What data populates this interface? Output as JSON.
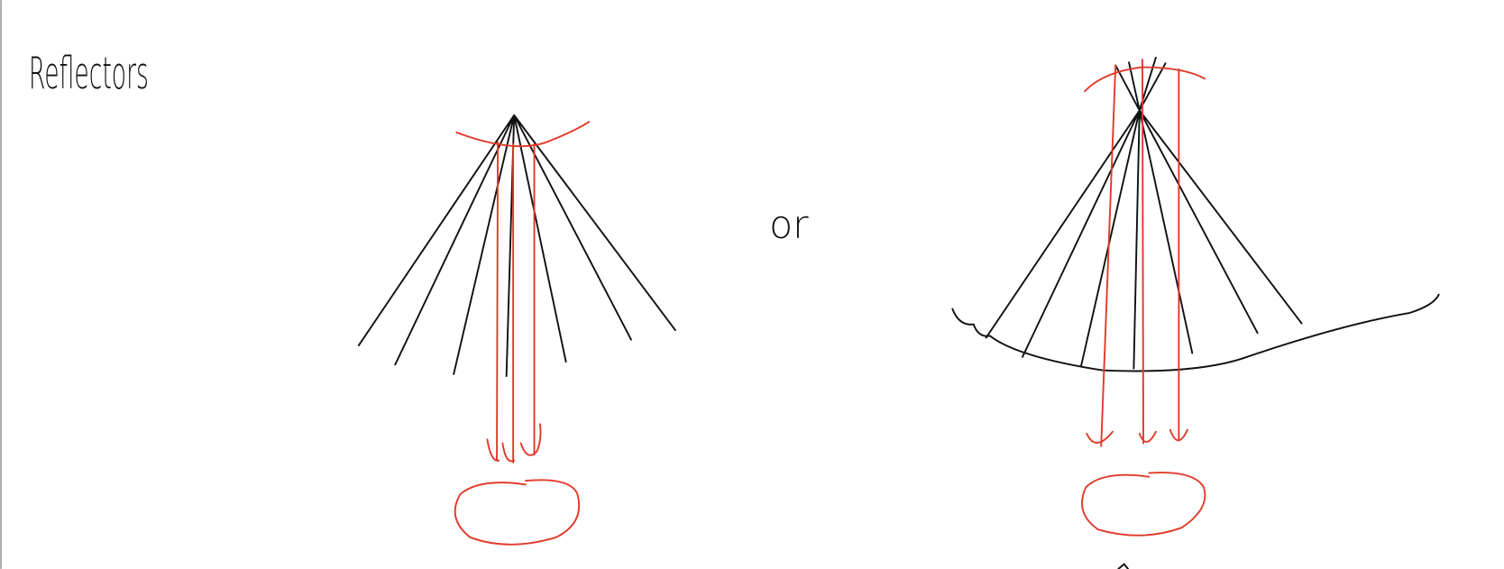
{
  "title": "Reflectors",
  "connector": "or"
}
